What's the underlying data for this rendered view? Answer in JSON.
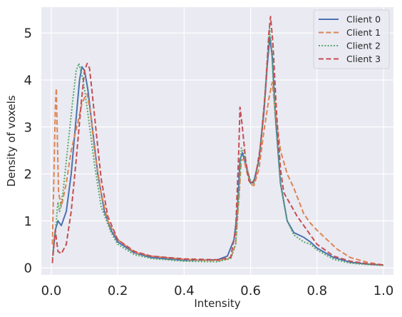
{
  "chart_data": {
    "type": "line",
    "xlabel": "Intensity",
    "ylabel": "Density of voxels",
    "xlim": [
      -0.03,
      1.03
    ],
    "ylim": [
      -0.15,
      5.55
    ],
    "xticks": [
      0.0,
      0.2,
      0.4,
      0.6,
      0.8,
      1.0
    ],
    "xtick_labels": [
      "0.0",
      "0.2",
      "0.4",
      "0.6",
      "0.8",
      "1.0"
    ],
    "yticks": [
      0,
      1,
      2,
      3,
      4,
      5
    ],
    "ytick_labels": [
      "0",
      "1",
      "2",
      "3",
      "4",
      "5"
    ],
    "grid": true,
    "legend_position": "top-right",
    "colors": {
      "background": "#eaeaf2",
      "grid": "#ffffff"
    },
    "series": [
      {
        "name": "Client 0",
        "color": "#4c72b0",
        "dash": "solid",
        "points": [
          [
            0.005,
            0.3
          ],
          [
            0.012,
            0.8
          ],
          [
            0.02,
            1.0
          ],
          [
            0.03,
            0.9
          ],
          [
            0.045,
            1.2
          ],
          [
            0.06,
            2.0
          ],
          [
            0.075,
            3.2
          ],
          [
            0.085,
            4.0
          ],
          [
            0.092,
            4.28
          ],
          [
            0.1,
            4.2
          ],
          [
            0.11,
            3.8
          ],
          [
            0.12,
            3.2
          ],
          [
            0.14,
            2.0
          ],
          [
            0.16,
            1.2
          ],
          [
            0.18,
            0.8
          ],
          [
            0.2,
            0.55
          ],
          [
            0.25,
            0.32
          ],
          [
            0.3,
            0.22
          ],
          [
            0.4,
            0.16
          ],
          [
            0.5,
            0.17
          ],
          [
            0.53,
            0.25
          ],
          [
            0.55,
            0.6
          ],
          [
            0.56,
            1.2
          ],
          [
            0.568,
            2.3
          ],
          [
            0.575,
            2.45
          ],
          [
            0.585,
            2.2
          ],
          [
            0.6,
            1.8
          ],
          [
            0.61,
            1.85
          ],
          [
            0.625,
            2.3
          ],
          [
            0.64,
            3.3
          ],
          [
            0.65,
            4.3
          ],
          [
            0.658,
            4.92
          ],
          [
            0.665,
            4.5
          ],
          [
            0.675,
            3.2
          ],
          [
            0.69,
            1.8
          ],
          [
            0.71,
            1.0
          ],
          [
            0.73,
            0.75
          ],
          [
            0.76,
            0.65
          ],
          [
            0.78,
            0.55
          ],
          [
            0.8,
            0.42
          ],
          [
            0.85,
            0.22
          ],
          [
            0.9,
            0.12
          ],
          [
            0.95,
            0.08
          ],
          [
            1.0,
            0.06
          ]
        ]
      },
      {
        "name": "Client 1",
        "color": "#dd8452",
        "dash": "dashed",
        "points": [
          [
            0.003,
            0.5
          ],
          [
            0.008,
            2.0
          ],
          [
            0.012,
            3.4
          ],
          [
            0.015,
            3.82
          ],
          [
            0.018,
            2.8
          ],
          [
            0.022,
            1.6
          ],
          [
            0.03,
            1.3
          ],
          [
            0.045,
            1.8
          ],
          [
            0.06,
            2.5
          ],
          [
            0.08,
            3.1
          ],
          [
            0.092,
            3.5
          ],
          [
            0.1,
            3.62
          ],
          [
            0.108,
            3.7
          ],
          [
            0.118,
            3.3
          ],
          [
            0.13,
            2.5
          ],
          [
            0.15,
            1.6
          ],
          [
            0.17,
            1.0
          ],
          [
            0.2,
            0.6
          ],
          [
            0.25,
            0.33
          ],
          [
            0.3,
            0.25
          ],
          [
            0.4,
            0.18
          ],
          [
            0.5,
            0.15
          ],
          [
            0.54,
            0.2
          ],
          [
            0.555,
            0.5
          ],
          [
            0.565,
            1.5
          ],
          [
            0.572,
            2.3
          ],
          [
            0.58,
            2.3
          ],
          [
            0.59,
            2.0
          ],
          [
            0.6,
            1.78
          ],
          [
            0.61,
            1.75
          ],
          [
            0.625,
            2.1
          ],
          [
            0.64,
            2.9
          ],
          [
            0.655,
            3.6
          ],
          [
            0.665,
            3.95
          ],
          [
            0.675,
            3.3
          ],
          [
            0.69,
            2.5
          ],
          [
            0.71,
            2.0
          ],
          [
            0.73,
            1.7
          ],
          [
            0.76,
            1.15
          ],
          [
            0.78,
            0.95
          ],
          [
            0.8,
            0.8
          ],
          [
            0.83,
            0.6
          ],
          [
            0.86,
            0.4
          ],
          [
            0.9,
            0.22
          ],
          [
            0.95,
            0.12
          ],
          [
            1.0,
            0.06
          ]
        ]
      },
      {
        "name": "Client 2",
        "color": "#55a868",
        "dash": "dotted",
        "points": [
          [
            0.003,
            0.2
          ],
          [
            0.01,
            0.6
          ],
          [
            0.015,
            1.0
          ],
          [
            0.02,
            1.4
          ],
          [
            0.025,
            1.2
          ],
          [
            0.035,
            1.6
          ],
          [
            0.05,
            2.6
          ],
          [
            0.065,
            3.6
          ],
          [
            0.075,
            4.2
          ],
          [
            0.083,
            4.35
          ],
          [
            0.092,
            4.1
          ],
          [
            0.1,
            3.8
          ],
          [
            0.11,
            3.3
          ],
          [
            0.13,
            2.2
          ],
          [
            0.15,
            1.3
          ],
          [
            0.18,
            0.75
          ],
          [
            0.2,
            0.5
          ],
          [
            0.25,
            0.28
          ],
          [
            0.3,
            0.2
          ],
          [
            0.4,
            0.14
          ],
          [
            0.5,
            0.13
          ],
          [
            0.54,
            0.2
          ],
          [
            0.555,
            0.5
          ],
          [
            0.565,
            1.6
          ],
          [
            0.572,
            2.55
          ],
          [
            0.58,
            2.45
          ],
          [
            0.59,
            2.1
          ],
          [
            0.6,
            1.85
          ],
          [
            0.61,
            1.8
          ],
          [
            0.625,
            2.3
          ],
          [
            0.64,
            3.4
          ],
          [
            0.65,
            4.4
          ],
          [
            0.657,
            5.1
          ],
          [
            0.663,
            4.7
          ],
          [
            0.672,
            3.4
          ],
          [
            0.69,
            1.8
          ],
          [
            0.71,
            1.0
          ],
          [
            0.73,
            0.7
          ],
          [
            0.76,
            0.55
          ],
          [
            0.78,
            0.5
          ],
          [
            0.8,
            0.38
          ],
          [
            0.85,
            0.18
          ],
          [
            0.9,
            0.1
          ],
          [
            0.95,
            0.07
          ],
          [
            1.0,
            0.05
          ]
        ]
      },
      {
        "name": "Client 3",
        "color": "#c44e52",
        "dash": "dashed",
        "points": [
          [
            0.003,
            0.1
          ],
          [
            0.008,
            0.5
          ],
          [
            0.012,
            0.8
          ],
          [
            0.02,
            0.35
          ],
          [
            0.03,
            0.3
          ],
          [
            0.045,
            0.5
          ],
          [
            0.06,
            1.2
          ],
          [
            0.075,
            2.3
          ],
          [
            0.09,
            3.5
          ],
          [
            0.1,
            4.2
          ],
          [
            0.108,
            4.35
          ],
          [
            0.115,
            4.25
          ],
          [
            0.122,
            3.8
          ],
          [
            0.135,
            2.9
          ],
          [
            0.15,
            1.9
          ],
          [
            0.17,
            1.1
          ],
          [
            0.2,
            0.6
          ],
          [
            0.25,
            0.35
          ],
          [
            0.3,
            0.25
          ],
          [
            0.4,
            0.19
          ],
          [
            0.5,
            0.17
          ],
          [
            0.54,
            0.22
          ],
          [
            0.555,
            0.8
          ],
          [
            0.564,
            2.4
          ],
          [
            0.568,
            3.42
          ],
          [
            0.575,
            3.0
          ],
          [
            0.585,
            2.3
          ],
          [
            0.595,
            1.85
          ],
          [
            0.605,
            1.78
          ],
          [
            0.615,
            1.95
          ],
          [
            0.63,
            2.6
          ],
          [
            0.645,
            3.8
          ],
          [
            0.655,
            5.0
          ],
          [
            0.66,
            5.35
          ],
          [
            0.667,
            4.8
          ],
          [
            0.678,
            3.3
          ],
          [
            0.69,
            2.1
          ],
          [
            0.7,
            1.6
          ],
          [
            0.72,
            1.35
          ],
          [
            0.74,
            1.1
          ],
          [
            0.76,
            0.9
          ],
          [
            0.78,
            0.7
          ],
          [
            0.8,
            0.5
          ],
          [
            0.85,
            0.25
          ],
          [
            0.9,
            0.14
          ],
          [
            0.95,
            0.09
          ],
          [
            1.0,
            0.06
          ]
        ]
      }
    ]
  }
}
